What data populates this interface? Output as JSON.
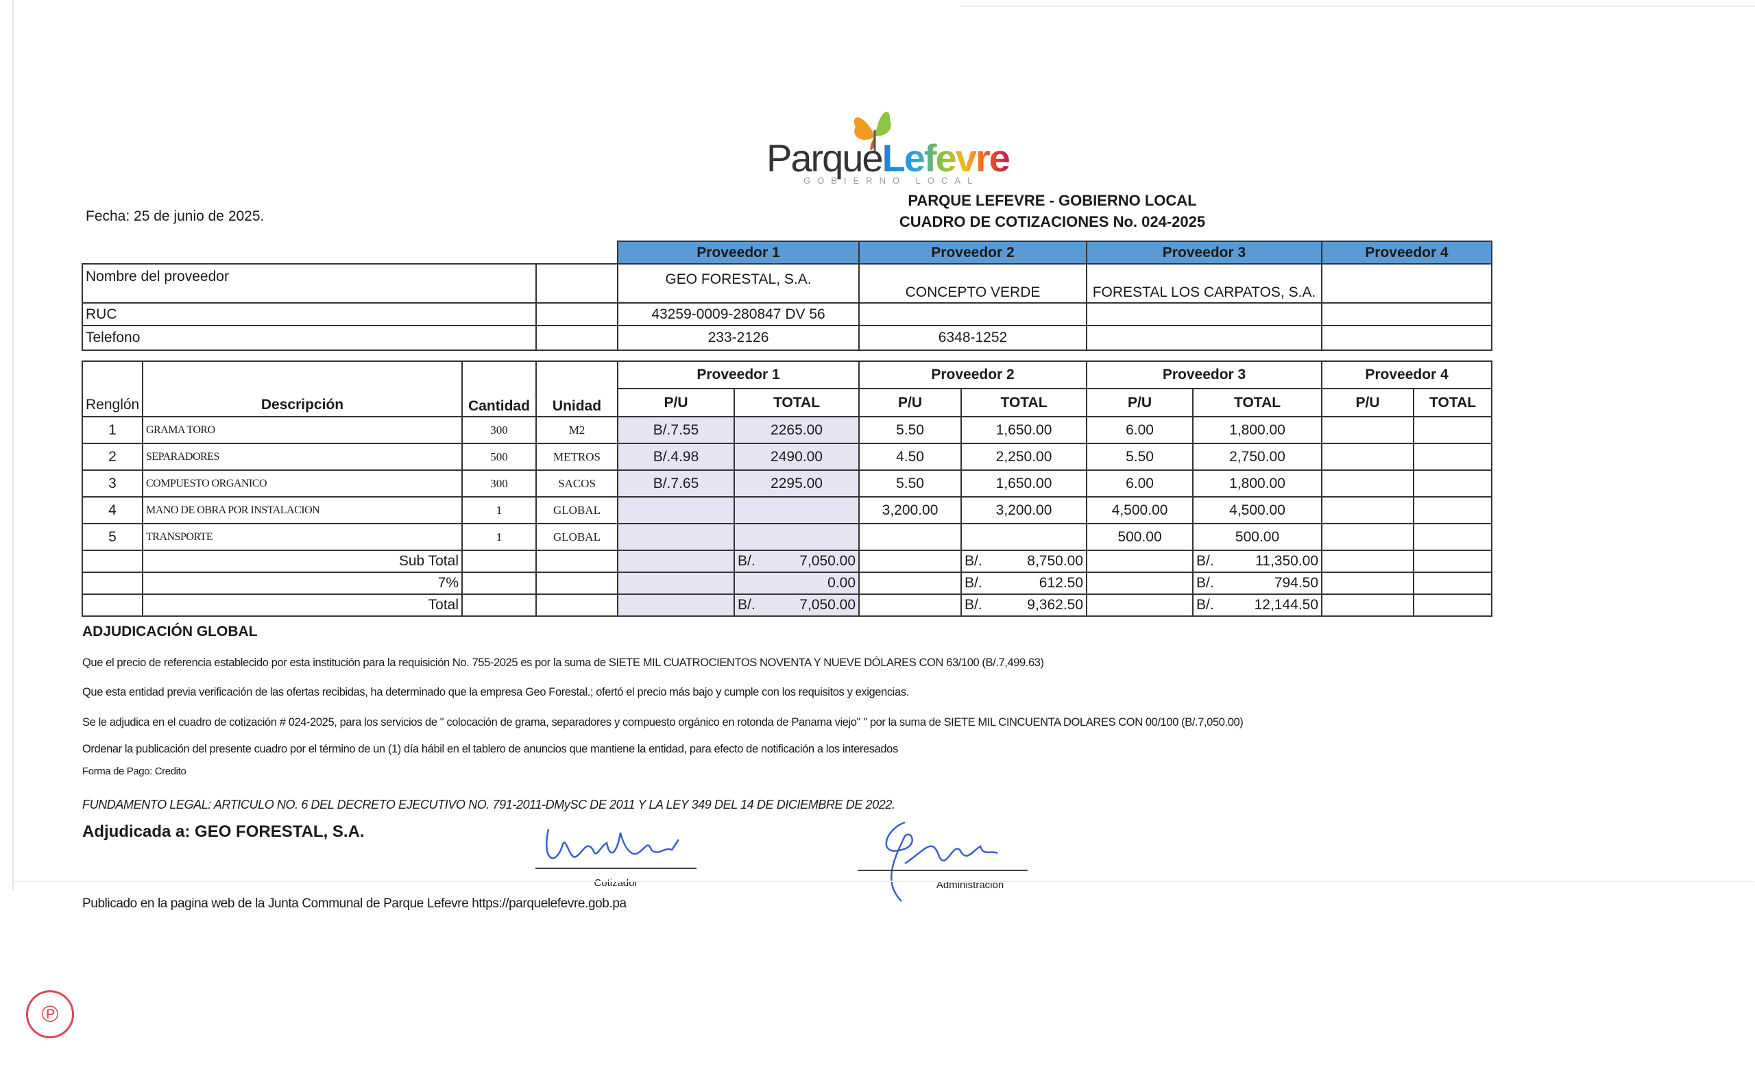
{
  "header": {
    "logo": {
      "word_left": "Parque",
      "word_right": "Lefevre",
      "subtitle": "GOBIERNO LOCAL"
    },
    "title_line1": "PARQUE LEFEVRE - GOBIERNO LOCAL",
    "title_line2": "CUADRO DE COTIZACIONES No. 024-2025",
    "date": "Fecha: 25 de junio de 2025."
  },
  "providers_info": {
    "labels": {
      "name": "Nombre del proveedor",
      "ruc": "RUC",
      "phone": "Telefono"
    },
    "providers": [
      {
        "header": "Proveedor 1",
        "name": "GEO FORESTAL, S.A.",
        "ruc": "43259-0009-280847 DV 56",
        "phone": "233-2126"
      },
      {
        "header": "Proveedor 2",
        "name": "CONCEPTO VERDE",
        "ruc": "",
        "phone": "6348-1252"
      },
      {
        "header": "Proveedor 3",
        "name": "FORESTAL LOS CARPATOS, S.A.",
        "ruc": "",
        "phone": ""
      },
      {
        "header": "Proveedor 4",
        "name": "",
        "ruc": "",
        "phone": ""
      }
    ],
    "header_color": "#5b9bd5"
  },
  "quote_table": {
    "headers": {
      "renglon": "Renglón",
      "descripcion": "Descripción",
      "cantidad": "Cantidad",
      "unidad": "Unidad",
      "pu": "P/U",
      "total": "TOTAL"
    },
    "provider_headers": [
      "Proveedor 1",
      "Proveedor 2",
      "Proveedor 3",
      "Proveedor 4"
    ],
    "items": [
      [
        "1",
        "GRAMA TORO",
        "300",
        "M2",
        "B/.7.55",
        "2265.00",
        "5.50",
        "1,650.00",
        "6.00",
        "1,800.00",
        "",
        ""
      ],
      [
        "2",
        "SEPARADORES",
        "500",
        "METROS",
        "B/.4.98",
        "2490.00",
        "4.50",
        "2,250.00",
        "5.50",
        "2,750.00",
        "",
        ""
      ],
      [
        "3",
        "COMPUESTO ORGANICO",
        "300",
        "SACOS",
        "B/.7.65",
        "2295.00",
        "5.50",
        "1,650.00",
        "6.00",
        "1,800.00",
        "",
        ""
      ],
      [
        "4",
        "MANO DE OBRA POR INSTALACION",
        "1",
        "GLOBAL",
        "",
        "",
        "3,200.00",
        "3,200.00",
        "4,500.00",
        "4,500.00",
        "",
        ""
      ],
      [
        "5",
        "TRANSPORTE",
        "1",
        "GLOBAL",
        "",
        "",
        "",
        "",
        "500.00",
        "500.00",
        "",
        ""
      ]
    ],
    "summary": [
      {
        "label": "Sub Total",
        "totals": [
          {
            "cur": "B/.",
            "val": "7,050.00"
          },
          {
            "cur": "B/.",
            "val": "8,750.00"
          },
          {
            "cur": "B/.",
            "val": "11,350.00"
          },
          {
            "cur": "",
            "val": ""
          }
        ]
      },
      {
        "label": "7%",
        "totals": [
          {
            "cur": "",
            "val": "0.00"
          },
          {
            "cur": "B/.",
            "val": "612.50"
          },
          {
            "cur": "B/.",
            "val": "794.50"
          },
          {
            "cur": "",
            "val": ""
          }
        ]
      },
      {
        "label": "Total",
        "totals": [
          {
            "cur": "B/.",
            "val": "7,050.00"
          },
          {
            "cur": "B/.",
            "val": "9,362.50"
          },
          {
            "cur": "B/.",
            "val": "12,144.50"
          },
          {
            "cur": "",
            "val": ""
          }
        ]
      }
    ],
    "highlight_color": "#e4e4f2"
  },
  "adjudicacion": {
    "heading": "ADJUDICACIÓN GLOBAL",
    "paragraphs": [
      "Que el precio de referencia establecido por esta institución para la requisición No. 755-2025  es por la suma de  SIETE MIL CUATROCIENTOS NOVENTA Y NUEVE DÓLARES CON 63/100 (B/.7,499.63)",
      "Que esta entidad previa verificación de las ofertas recibidas,  ha determinado que la empresa Geo Forestal.; ofertó el precio más bajo y cumple con los requisitos  y exigencias.",
      "Se le adjudica en el cuadro de cotización # 024-2025,  para los servicios de  \" colocación de grama, separadores y compuesto orgánico en rotonda de Panama viejo\" \" por la suma de   SIETE MIL CINCUENTA DOLARES CON 00/100 (B/.7,050.00)",
      "Ordenar la publicación del presente cuadro por el término de un (1) día hábil en el tablero de anuncios que mantiene la entidad, para efecto de notificación a los interesados"
    ],
    "payment": "Forma de Pago: Credito",
    "legal": "FUNDAMENTO LEGAL:  ARTICULO NO. 6 DEL DECRETO EJECUTIVO NO. 791-2011-DMySC DE 2011 Y LA LEY 349 DEL 14 DE DICIEMBRE DE 2022.",
    "awarded": "Adjudicada a: GEO FORESTAL, S.A."
  },
  "signatures": {
    "cotizador": "Cotizador",
    "administracion": "Administración",
    "ink_color": "#3a5fcd"
  },
  "footer": {
    "published": "Publicado en la pagina web de la Junta Communal de Parque Lefevre https://parquelefevre.gob.pa"
  },
  "stamp": {
    "color": "#e0455a"
  }
}
